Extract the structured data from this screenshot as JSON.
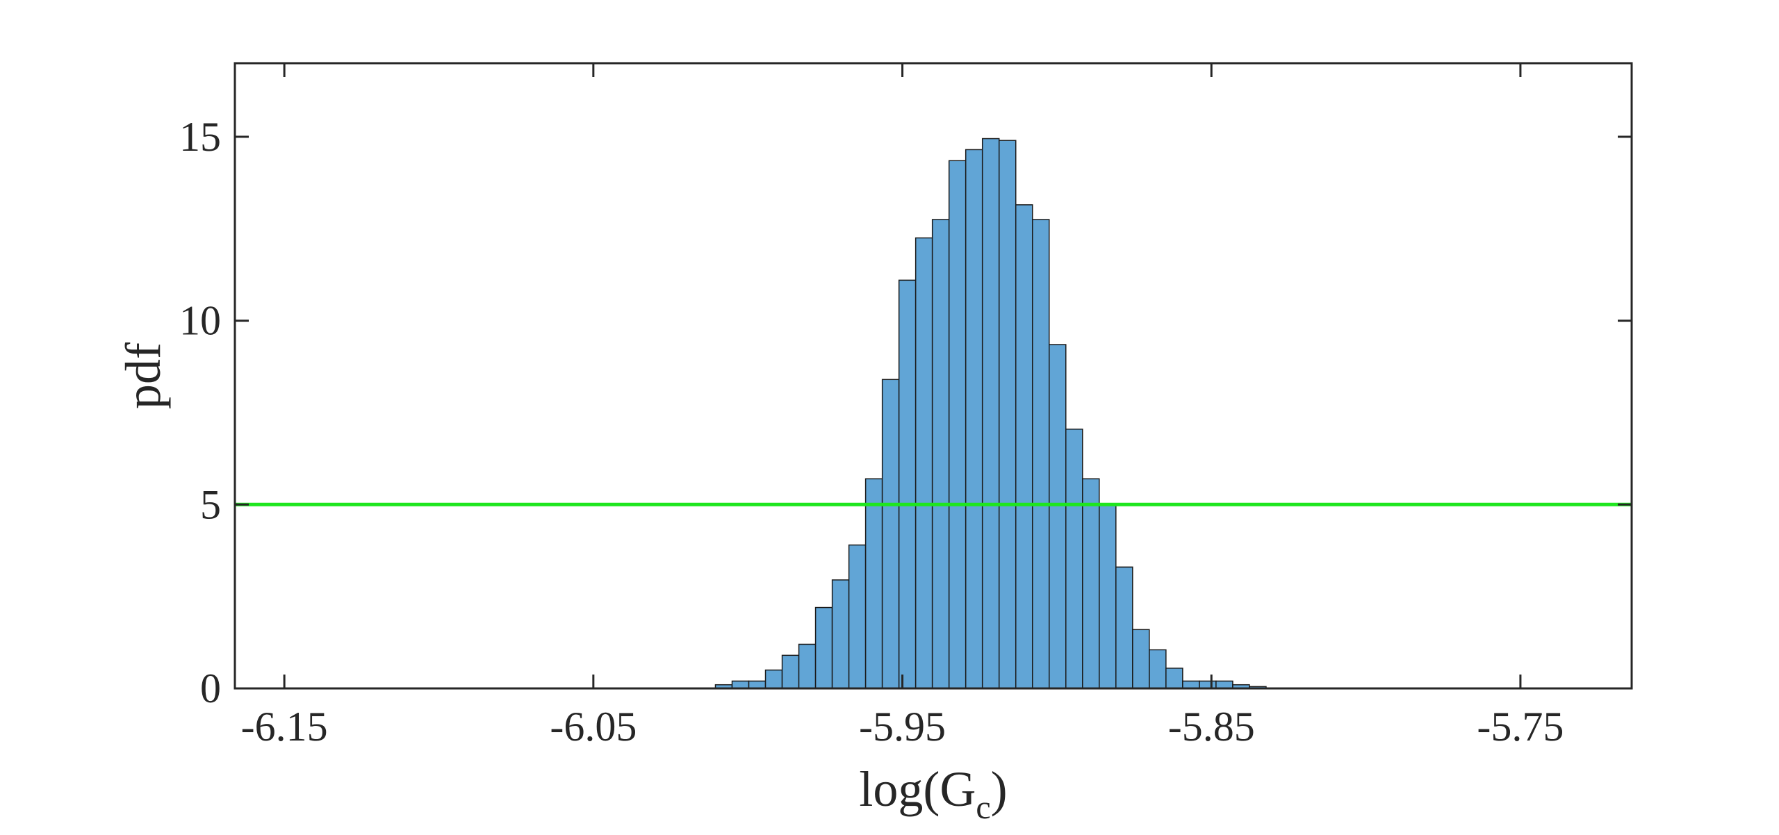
{
  "chart_data": {
    "type": "bar",
    "title": "",
    "xlabel": "log(G_c)",
    "xlabel_parts": {
      "main": "log(G",
      "subscript": "c",
      "close": ")"
    },
    "ylabel": "pdf",
    "xlim": [
      -6.166,
      -5.714
    ],
    "ylim": [
      0,
      17
    ],
    "xticks": [
      -6.15,
      -6.05,
      -5.95,
      -5.85,
      -5.75
    ],
    "xtick_labels": [
      "-6.15",
      "-6.05",
      "-5.95",
      "-5.85",
      "-5.75"
    ],
    "yticks": [
      0,
      5,
      10,
      15
    ],
    "ytick_labels": [
      "0",
      "5",
      "10",
      "15"
    ],
    "grid": false,
    "legend": null,
    "bar_color": "#61A5D6",
    "bar_edge_color": "#1a1a1a",
    "threshold_color": "#1EE61E",
    "threshold": 5,
    "bin_width": 0.0054,
    "bins": [
      {
        "x0": -6.0105,
        "value": 0.1
      },
      {
        "x0": -6.0051,
        "value": 0.2
      },
      {
        "x0": -5.9997,
        "value": 0.2
      },
      {
        "x0": -5.9943,
        "value": 0.5
      },
      {
        "x0": -5.9889,
        "value": 0.9
      },
      {
        "x0": -5.9835,
        "value": 1.2
      },
      {
        "x0": -5.9781,
        "value": 2.2
      },
      {
        "x0": -5.9727,
        "value": 2.95
      },
      {
        "x0": -5.9673,
        "value": 3.9
      },
      {
        "x0": -5.9619,
        "value": 5.7
      },
      {
        "x0": -5.9565,
        "value": 8.4
      },
      {
        "x0": -5.9511,
        "value": 11.1
      },
      {
        "x0": -5.9457,
        "value": 12.25
      },
      {
        "x0": -5.9403,
        "value": 12.75
      },
      {
        "x0": -5.9349,
        "value": 14.35
      },
      {
        "x0": -5.9295,
        "value": 14.65
      },
      {
        "x0": -5.9241,
        "value": 14.95
      },
      {
        "x0": -5.9187,
        "value": 14.9
      },
      {
        "x0": -5.9133,
        "value": 13.15
      },
      {
        "x0": -5.9079,
        "value": 12.75
      },
      {
        "x0": -5.9025,
        "value": 9.35
      },
      {
        "x0": -5.8971,
        "value": 7.05
      },
      {
        "x0": -5.8917,
        "value": 5.7
      },
      {
        "x0": -5.8863,
        "value": 5.0
      },
      {
        "x0": -5.8809,
        "value": 3.3
      },
      {
        "x0": -5.8755,
        "value": 1.6
      },
      {
        "x0": -5.8701,
        "value": 1.05
      },
      {
        "x0": -5.8647,
        "value": 0.55
      },
      {
        "x0": -5.8593,
        "value": 0.2
      },
      {
        "x0": -5.8539,
        "value": 0.2
      },
      {
        "x0": -5.8485,
        "value": 0.2
      },
      {
        "x0": -5.8431,
        "value": 0.1
      },
      {
        "x0": -5.8377,
        "value": 0.05
      }
    ]
  }
}
